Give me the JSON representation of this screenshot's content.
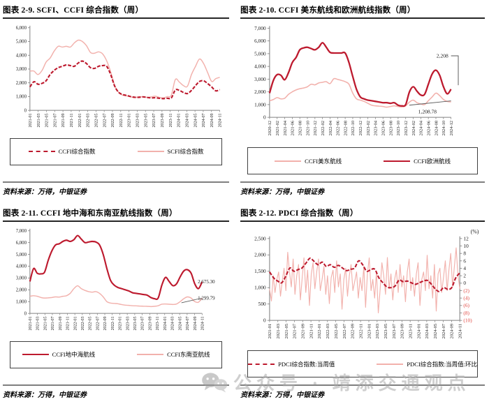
{
  "source_text": "资料来源：万得，中银证券",
  "watermark": {
    "text": "公众号 · 靖添交通观点"
  },
  "colors": {
    "dark_red": "#bd1a2e",
    "light_pink": "#f2b1ac",
    "negative_tick_red": "#e0453f",
    "axis_gray": "#808080"
  },
  "chart_data": [
    {
      "type": "line",
      "title": "图表 2-9. SCFI、CCFI 综合指数（周）",
      "ylim": [
        0,
        6000
      ],
      "yticks": [
        0,
        1000,
        2000,
        3000,
        4000,
        5000,
        6000
      ],
      "right_margin": 14,
      "x_labels": [
        "2021-01",
        "2021-03",
        "2021-05",
        "2021-07",
        "2021-09",
        "2021-11",
        "2022-01",
        "2022-03",
        "2022-05",
        "2022-07",
        "2022-09",
        "2022-11",
        "2023-01",
        "2023-03",
        "2023-05",
        "2023-07",
        "2023-09",
        "2023-11",
        "2024-01",
        "2024-03",
        "2024-05",
        "2024-07",
        "2024-09",
        "2024-11"
      ],
      "series": [
        {
          "name": "SCFI综合指数",
          "color": "#f2b1ac",
          "width": 1.5,
          "dash": false,
          "values": [
            2850,
            2850,
            2600,
            2900,
            3500,
            3800,
            4300,
            4650,
            4600,
            4650,
            4600,
            4900,
            5100,
            5000,
            4700,
            4200,
            4150,
            4250,
            4100,
            3600,
            2800,
            1800,
            1300,
            1100,
            1050,
            980,
            930,
            1000,
            980,
            950,
            980,
            1030,
            950,
            900,
            1000,
            1100,
            2240,
            2050,
            1800,
            1750,
            2600,
            3200,
            3730,
            3400,
            2750,
            2100,
            2300,
            2400
          ]
        },
        {
          "name": "CCFI综合指数",
          "color": "#bd1a2e",
          "width": 2.2,
          "dash": true,
          "values": [
            1700,
            2080,
            1900,
            1960,
            2150,
            2600,
            2900,
            3100,
            3200,
            3300,
            3250,
            3200,
            3450,
            3580,
            3400,
            3100,
            3050,
            3200,
            3250,
            3200,
            2600,
            1750,
            1300,
            1150,
            1080,
            1000,
            950,
            950,
            980,
            940,
            900,
            920,
            880,
            850,
            880,
            900,
            1480,
            1450,
            1300,
            1220,
            1450,
            1800,
            2100,
            2150,
            1950,
            1700,
            1420,
            1500
          ]
        }
      ]
    },
    {
      "type": "line",
      "title": "图表 2-10. CCFI 美东航线和欧洲航线指数（周）",
      "ylim": [
        0,
        7000
      ],
      "yticks": [
        0,
        1000,
        2000,
        3000,
        4000,
        5000,
        6000,
        7000
      ],
      "right_margin": 46,
      "x_labels": [
        "2020-12",
        "2021-02",
        "2021-04",
        "2021-06",
        "2021-08",
        "2021-10",
        "2021-12",
        "2022-02",
        "2022-04",
        "2022-06",
        "2022-08",
        "2022-10",
        "2022-12",
        "2023-02",
        "2023-04",
        "2023-06",
        "2023-08",
        "2023-10",
        "2023-12",
        "2024-02",
        "2024-04",
        "2024-06",
        "2024-08",
        "2024-10",
        "2024-12"
      ],
      "series": [
        {
          "name": "CCFI美东航线",
          "color": "#f2b1ac",
          "width": 1.5,
          "dash": false,
          "values": [
            1300,
            1400,
            1550,
            1450,
            1500,
            1800,
            2000,
            2150,
            2250,
            2300,
            2400,
            2600,
            2550,
            2700,
            2750,
            2800,
            2650,
            3030,
            2980,
            2900,
            2800,
            2600,
            1900,
            1450,
            1350,
            1250,
            1100,
            950,
            900,
            880,
            850,
            800,
            850,
            900,
            850,
            820,
            900,
            1200,
            1350,
            1150,
            1050,
            1000,
            1300,
            1600,
            1900,
            1700,
            1400,
            1250,
            1209
          ]
        },
        {
          "name": "CCFI欧洲航线",
          "color": "#bd1a2e",
          "width": 2.2,
          "dash": false,
          "values": [
            1900,
            2900,
            3350,
            3300,
            2950,
            3500,
            4300,
            4700,
            5300,
            5450,
            5500,
            5400,
            5300,
            5500,
            5860,
            5500,
            5100,
            5050,
            5050,
            5050,
            5050,
            4300,
            3200,
            2200,
            1600,
            1450,
            1350,
            1300,
            1250,
            1200,
            1150,
            1150,
            1100,
            1150,
            950,
            900,
            1000,
            2000,
            2400,
            2050,
            1750,
            1800,
            2600,
            3400,
            3700,
            3300,
            2400,
            1850,
            2208
          ]
        }
      ],
      "annotations": [
        {
          "text": "2,208",
          "xf": 0.985,
          "v": 4830,
          "anchor": "end",
          "leader": [
            [
              1.0,
              4830
            ],
            [
              1.04,
              4830
            ],
            [
              1.04,
              2520
            ]
          ]
        },
        {
          "text": "1,208.78",
          "xf": 0.87,
          "v": 430,
          "anchor": "middle",
          "leader": [
            [
              0.77,
              950
            ],
            [
              1.0,
              1290
            ]
          ]
        }
      ]
    },
    {
      "type": "line",
      "title": "图表 2-11. CCFI 地中海和东南亚航线指数（周）",
      "ylim": [
        0,
        7000
      ],
      "yticks": [
        0,
        1000,
        2000,
        3000,
        4000,
        5000,
        6000,
        7000
      ],
      "right_margin": 40,
      "x_labels": [
        "2021-01",
        "2021-03",
        "2021-05",
        "2021-07",
        "2021-09",
        "2021-11",
        "2022-01",
        "2022-03",
        "2022-05",
        "2022-07",
        "2022-09",
        "2022-11",
        "2023-01",
        "2023-03",
        "2023-05",
        "2023-07",
        "2023-09",
        "2023-11",
        "2024-01",
        "2024-03",
        "2024-05",
        "2024-07",
        "2024-09",
        "2024-11"
      ],
      "series": [
        {
          "name": "CCFI东南亚航线",
          "color": "#f2b1ac",
          "width": 1.5,
          "dash": false,
          "values": [
            1450,
            1500,
            1450,
            1350,
            1300,
            1320,
            1350,
            1400,
            1380,
            1450,
            1500,
            1700,
            2100,
            2340,
            2100,
            1950,
            1850,
            1800,
            1850,
            1700,
            1400,
            1000,
            880,
            850,
            820,
            750,
            700,
            680,
            650,
            640,
            620,
            610,
            600,
            580,
            600,
            650,
            780,
            800,
            780,
            760,
            800,
            1000,
            1250,
            1400,
            1300,
            1000,
            950,
            1300
          ]
        },
        {
          "name": "CCFI地中海航线",
          "color": "#bd1a2e",
          "width": 2.2,
          "dash": false,
          "values": [
            2700,
            3800,
            3400,
            3350,
            3500,
            4500,
            5300,
            5800,
            5900,
            6100,
            6200,
            6100,
            6250,
            6600,
            6300,
            6000,
            6050,
            6100,
            6050,
            5800,
            5000,
            3800,
            2800,
            2400,
            2200,
            2100,
            2000,
            1900,
            1750,
            1700,
            1650,
            1600,
            1550,
            1350,
            1250,
            1300,
            2400,
            3050,
            2700,
            2350,
            2500,
            3100,
            3600,
            3700,
            3400,
            2500,
            2100,
            2675
          ]
        }
      ],
      "annotations": [
        {
          "text": "2,675.30",
          "xf": 0.975,
          "v": 2675,
          "anchor": "start"
        },
        {
          "text": "1,299.79",
          "xf": 0.975,
          "v": 1300,
          "anchor": "start",
          "leader": [
            [
              0.88,
              900
            ],
            [
              1.0,
              1300
            ]
          ]
        }
      ]
    },
    {
      "type": "line",
      "title": "图表 2-12. PDCI 综合指数（周）",
      "ylim": [
        0,
        2500
      ],
      "yticks": [
        0,
        500,
        1000,
        1500,
        2000,
        2500
      ],
      "right_margin": 34,
      "right_axis": {
        "label": "(%)",
        "ylim": [
          -10,
          12
        ],
        "ticks": [
          12,
          10,
          8,
          6,
          4,
          2,
          0,
          -2,
          -4,
          -6,
          -8,
          -10
        ],
        "neg_color": "#e0453f"
      },
      "x_labels": [
        "2021-01",
        "2021-03",
        "2021-05",
        "2021-07",
        "2021-09",
        "2021-11",
        "2022-01",
        "2022-03",
        "2022-05",
        "2022-07",
        "2022-09",
        "2022-11",
        "2023-01",
        "2023-03",
        "2023-05",
        "2023-07",
        "2023-09",
        "2023-11",
        "2024-01",
        "2024-03",
        "2024-05",
        "2024-07",
        "2024-09",
        "2024-11"
      ],
      "series": [
        {
          "name": "PDCI综合指数:当周值:环比",
          "color": "#f2b1ac",
          "width": 1.1,
          "dash": false,
          "axis": "right",
          "smooth": false,
          "values": [
            -1.5,
            -4.8,
            2,
            -2.5,
            1,
            3,
            -3.5,
            0.5,
            4,
            -2,
            8.3,
            3,
            -1,
            6.5,
            -3,
            2,
            5,
            -4.5,
            1.5,
            6.8,
            -2.5,
            3.5,
            -6,
            2.5,
            5.5,
            -1.5,
            3,
            6.5,
            -2,
            1,
            4.5,
            -3,
            2,
            -5.5,
            1.5,
            3.5,
            -2.5,
            6,
            -1,
            2.5,
            -7,
            1,
            4,
            -3.5,
            2,
            5,
            -2,
            0.5,
            3,
            -4,
            1.5,
            -2,
            4.5,
            -6.5,
            2.5,
            6.8,
            -2,
            1,
            -4,
            3,
            -8,
            -2,
            5.5,
            2,
            -3,
            6.9,
            -1.5,
            2.5,
            -4.5,
            1,
            3.5,
            -2.5,
            5,
            -1,
            2,
            -5,
            3,
            6.5,
            -2,
            1.5,
            -3.5,
            2.5,
            5.5,
            -6,
            1,
            3,
            -2,
            7.5,
            -1.5,
            2,
            -4,
            5,
            -7.5,
            2.5,
            4,
            -2.5,
            1.5,
            6,
            -2,
            3.5,
            8,
            -1,
            4.5,
            9.5,
            2,
            -1.5
          ]
        },
        {
          "name": "PDCI综合指数:当周值",
          "color": "#bd1a2e",
          "width": 2,
          "dash": true,
          "values": [
            1480,
            1300,
            1200,
            1150,
            1350,
            1600,
            1500,
            1550,
            1600,
            1750,
            1900,
            1800,
            1700,
            1780,
            1650,
            1700,
            1620,
            1680,
            1600,
            1520,
            1560,
            1600,
            1820,
            1700,
            1500,
            1550,
            1560,
            1300,
            1150,
            1020,
            1000,
            1050,
            1230,
            1180,
            1200,
            1150,
            1100,
            1150,
            1200,
            1220,
            1100,
            950,
            880,
            1000,
            950,
            1000,
            1300,
            1450
          ]
        }
      ]
    }
  ]
}
